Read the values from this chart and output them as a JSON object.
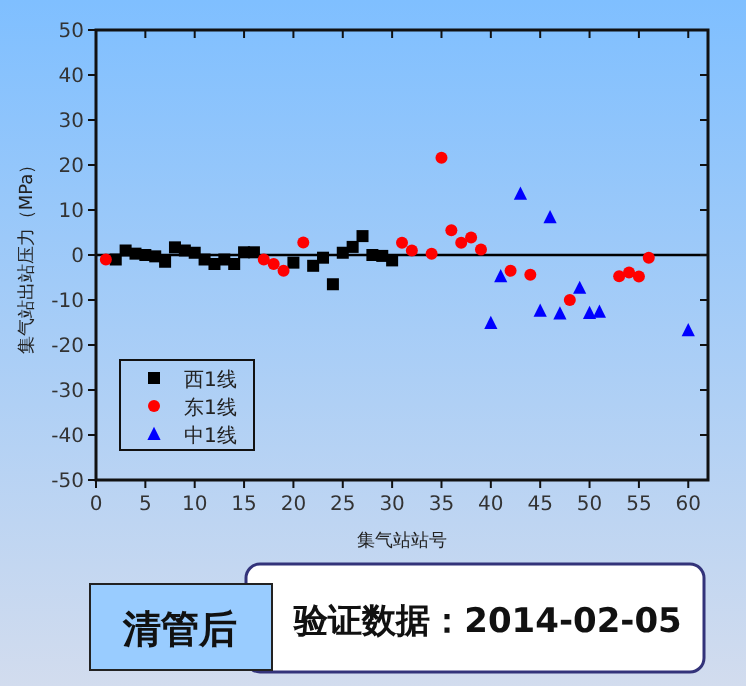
{
  "chart_data": {
    "type": "scatter",
    "xlabel": "集气站站号",
    "ylabel": "集气站出站压力（MPa）",
    "xlim": [
      0,
      62
    ],
    "ylim": [
      -50,
      50
    ],
    "xticks": [
      0,
      5,
      10,
      15,
      20,
      25,
      30,
      35,
      40,
      45,
      50,
      55,
      60
    ],
    "yticks": [
      -50,
      -40,
      -30,
      -20,
      -10,
      0,
      10,
      20,
      30,
      40,
      50
    ],
    "legend": "bottom left",
    "grid": false,
    "ref_lines": [
      {
        "axis": "y",
        "value": 0,
        "color": "#000000"
      }
    ],
    "series": [
      {
        "name": "西1线",
        "color": "#000000",
        "marker": "square",
        "x": [
          2,
          3,
          4,
          5,
          6,
          7,
          8,
          9,
          10,
          11,
          12,
          13,
          14,
          15,
          16,
          20,
          22,
          23,
          24,
          25,
          26,
          27,
          28,
          29,
          30
        ],
        "values": [
          -1,
          1,
          0.3,
          0,
          -0.3,
          -1.5,
          1.7,
          1,
          0.5,
          -1,
          -2,
          -1,
          -2,
          0.6,
          0.6,
          -1.7,
          -2.4,
          -0.6,
          -6.5,
          0.5,
          1.8,
          4.2,
          0,
          -0.2,
          -1.2
        ]
      },
      {
        "name": "东1线",
        "color": "#ff0000",
        "marker": "circle",
        "x": [
          1,
          17,
          18,
          19,
          21,
          31,
          32,
          34,
          35,
          36,
          37,
          38,
          39,
          42,
          44,
          48,
          53,
          54,
          55,
          56
        ],
        "values": [
          -1,
          -1,
          -2,
          -3.5,
          2.8,
          2.7,
          1,
          0.3,
          21.6,
          5.5,
          2.7,
          3.9,
          1.2,
          -3.5,
          -4.4,
          -10,
          -4.7,
          -3.9,
          -4.8,
          -0.6
        ]
      },
      {
        "name": "中1线",
        "color": "#0000ff",
        "marker": "triangle",
        "x": [
          40,
          41,
          43,
          45,
          46,
          47,
          49,
          50,
          51,
          60
        ],
        "values": [
          -15.1,
          -4.7,
          13.6,
          -12.4,
          8.4,
          -13,
          -7.3,
          -12.9,
          -12.6,
          -16.7
        ]
      }
    ],
    "annotations": [
      "清管后",
      "验证数据：2014-02-05"
    ]
  }
}
